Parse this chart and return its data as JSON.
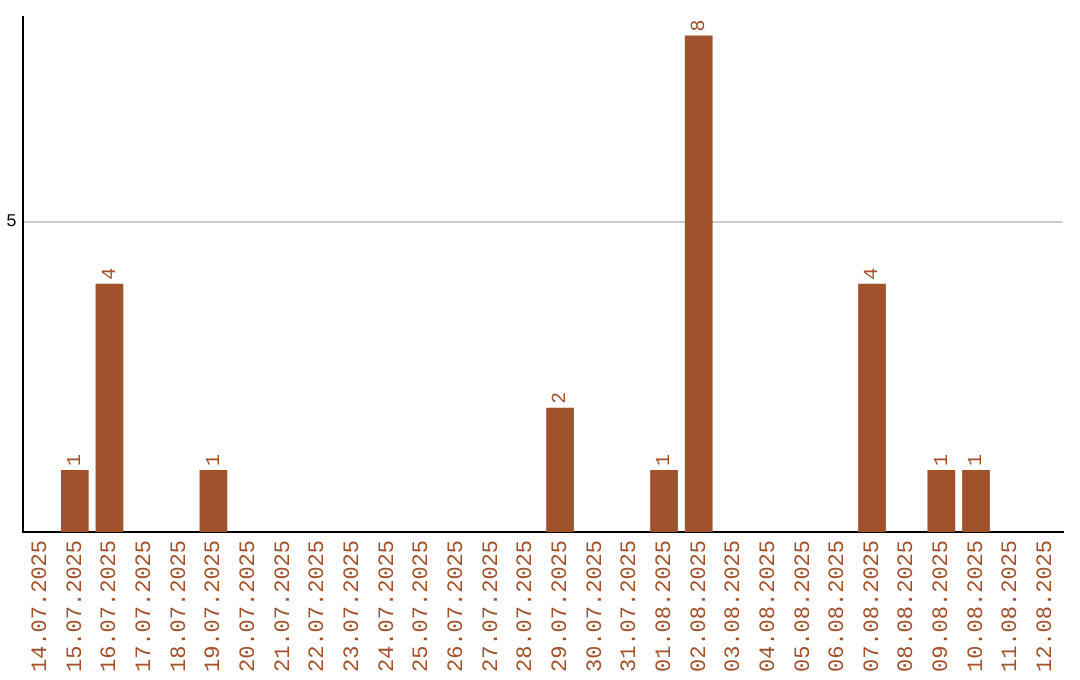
{
  "chart_data": {
    "type": "bar",
    "categories": [
      "14.07.2025",
      "15.07.2025",
      "16.07.2025",
      "17.07.2025",
      "18.07.2025",
      "19.07.2025",
      "20.07.2025",
      "21.07.2025",
      "22.07.2025",
      "23.07.2025",
      "24.07.2025",
      "25.07.2025",
      "26.07.2025",
      "27.07.2025",
      "28.07.2025",
      "29.07.2025",
      "30.07.2025",
      "31.07.2025",
      "01.08.2025",
      "02.08.2025",
      "03.08.2025",
      "04.08.2025",
      "05.08.2025",
      "06.08.2025",
      "07.08.2025",
      "08.08.2025",
      "09.08.2025",
      "10.08.2025",
      "11.08.2025",
      "12.08.2025"
    ],
    "values": [
      0,
      1,
      4,
      0,
      0,
      1,
      0,
      0,
      0,
      0,
      0,
      0,
      0,
      0,
      0,
      2,
      0,
      0,
      1,
      8,
      0,
      0,
      0,
      0,
      4,
      0,
      1,
      1,
      0,
      0
    ],
    "value_labels": [
      null,
      "1",
      "4",
      null,
      null,
      "1",
      null,
      null,
      null,
      null,
      null,
      null,
      null,
      null,
      null,
      "2",
      null,
      null,
      "1",
      "8",
      null,
      null,
      null,
      null,
      "4",
      null,
      "1",
      "1",
      null,
      null
    ],
    "color": "#a0522d",
    "ylim": [
      0,
      8.3
    ],
    "yticks": [
      5
    ],
    "grid": "y"
  }
}
